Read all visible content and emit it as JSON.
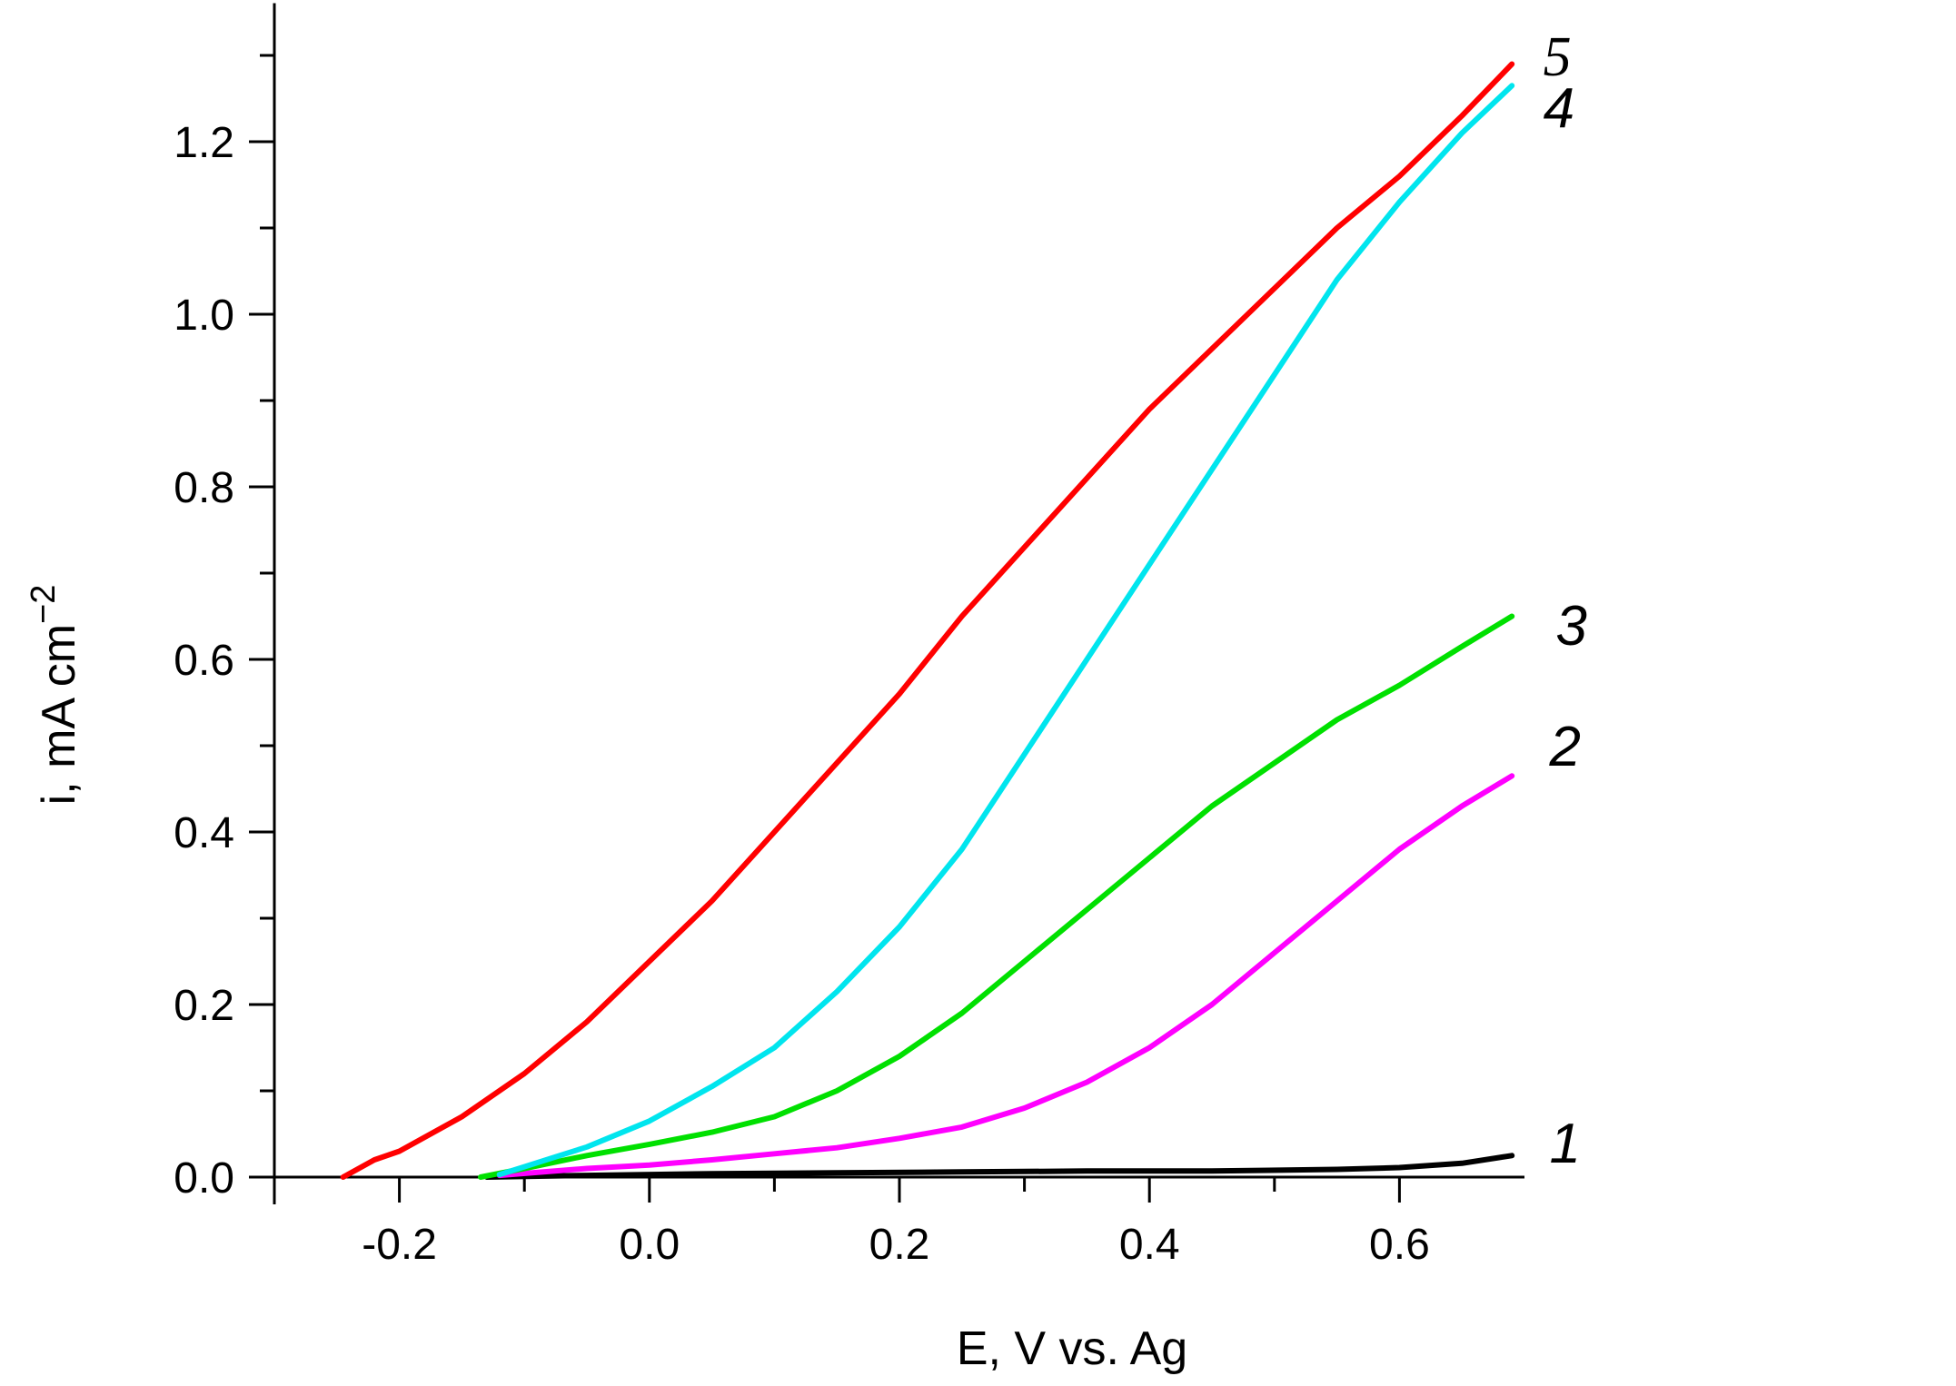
{
  "chart_data": {
    "type": "line",
    "title": "",
    "xlabel": "E, V vs. Ag",
    "ylabel_main": "i, mA cm",
    "ylabel_sup": "−2",
    "xlim": [
      -0.3,
      0.7
    ],
    "ylim": [
      0.0,
      1.35
    ],
    "x_major_ticks": [
      -0.2,
      0.0,
      0.2,
      0.4,
      0.6
    ],
    "x_tick_labels": [
      "-0.2",
      "0.0",
      "0.2",
      "0.4",
      "0.6"
    ],
    "x_minor_ticks": [
      -0.3,
      -0.1,
      0.1,
      0.3,
      0.5
    ],
    "y_major_ticks": [
      0.0,
      0.2,
      0.4,
      0.6,
      0.8,
      1.0,
      1.2
    ],
    "y_tick_labels": [
      "0.0",
      "0.2",
      "0.4",
      "0.6",
      "0.8",
      "1.0",
      "1.2"
    ],
    "y_minor_ticks": [
      0.1,
      0.3,
      0.5,
      0.7,
      0.9,
      1.1,
      1.3
    ],
    "grid": false,
    "legend": "none",
    "series": [
      {
        "name": "1",
        "color": "#000000",
        "x": [
          -0.13,
          -0.05,
          0.05,
          0.15,
          0.25,
          0.35,
          0.45,
          0.55,
          0.6,
          0.65,
          0.69
        ],
        "y": [
          0.0,
          0.002,
          0.004,
          0.005,
          0.006,
          0.007,
          0.007,
          0.009,
          0.011,
          0.016,
          0.025
        ]
      },
      {
        "name": "2",
        "color": "#ff00ff",
        "x": [
          -0.12,
          -0.05,
          0.0,
          0.05,
          0.1,
          0.15,
          0.2,
          0.25,
          0.3,
          0.35,
          0.4,
          0.45,
          0.5,
          0.55,
          0.6,
          0.65,
          0.69
        ],
        "y": [
          0.002,
          0.01,
          0.014,
          0.02,
          0.027,
          0.034,
          0.045,
          0.058,
          0.08,
          0.11,
          0.15,
          0.2,
          0.26,
          0.32,
          0.38,
          0.43,
          0.465
        ]
      },
      {
        "name": "3",
        "color": "#00e000",
        "x": [
          -0.135,
          -0.1,
          -0.05,
          0.0,
          0.05,
          0.1,
          0.15,
          0.2,
          0.25,
          0.3,
          0.35,
          0.4,
          0.45,
          0.5,
          0.55,
          0.6,
          0.65,
          0.69
        ],
        "y": [
          0.0,
          0.01,
          0.025,
          0.038,
          0.052,
          0.07,
          0.1,
          0.14,
          0.19,
          0.25,
          0.31,
          0.37,
          0.43,
          0.48,
          0.53,
          0.57,
          0.615,
          0.65
        ]
      },
      {
        "name": "4",
        "color": "#00e5ee",
        "x": [
          -0.12,
          -0.1,
          -0.05,
          0.0,
          0.05,
          0.1,
          0.15,
          0.2,
          0.25,
          0.3,
          0.35,
          0.4,
          0.45,
          0.5,
          0.55,
          0.6,
          0.65,
          0.69
        ],
        "y": [
          0.003,
          0.012,
          0.035,
          0.065,
          0.105,
          0.15,
          0.215,
          0.29,
          0.38,
          0.49,
          0.6,
          0.71,
          0.82,
          0.93,
          1.04,
          1.13,
          1.21,
          1.265
        ]
      },
      {
        "name": "5",
        "color": "#ff0000",
        "x": [
          -0.245,
          -0.22,
          -0.2,
          -0.15,
          -0.1,
          -0.05,
          0.0,
          0.05,
          0.1,
          0.15,
          0.2,
          0.25,
          0.3,
          0.35,
          0.4,
          0.45,
          0.5,
          0.55,
          0.6,
          0.65,
          0.69
        ],
        "y": [
          0.0,
          0.02,
          0.03,
          0.07,
          0.12,
          0.18,
          0.25,
          0.32,
          0.4,
          0.48,
          0.56,
          0.65,
          0.73,
          0.81,
          0.89,
          0.96,
          1.03,
          1.1,
          1.16,
          1.23,
          1.29
        ]
      }
    ],
    "curve_labels": [
      {
        "text": "1",
        "series": "1",
        "at_x": 0.72,
        "at_y": 0.04,
        "serif": false
      },
      {
        "text": "2",
        "series": "2",
        "at_x": 0.72,
        "at_y": 0.5,
        "serif": false
      },
      {
        "text": "3",
        "series": "3",
        "at_x": 0.725,
        "at_y": 0.64,
        "serif": false
      },
      {
        "text": "4",
        "series": "4",
        "at_x": 0.715,
        "at_y": 1.24,
        "serif": false
      },
      {
        "text": "5",
        "series": "5",
        "at_x": 0.715,
        "at_y": 1.3,
        "serif": true
      }
    ]
  }
}
